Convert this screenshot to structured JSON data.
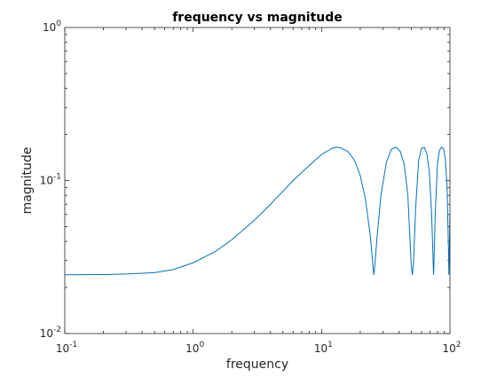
{
  "chart_data": {
    "type": "line",
    "title": "frequency vs magnitude",
    "xlabel": "frequency",
    "ylabel": "magnitude",
    "xscale": "log",
    "yscale": "log",
    "xlim": [
      0.1,
      100
    ],
    "ylim": [
      0.01,
      1
    ],
    "grid": false,
    "line_color": "#0072BD",
    "x_ticks": [
      {
        "value": 0.1,
        "base": "10",
        "exp": "-1"
      },
      {
        "value": 1,
        "base": "10",
        "exp": "0"
      },
      {
        "value": 10,
        "base": "10",
        "exp": "1"
      },
      {
        "value": 100,
        "base": "10",
        "exp": "2"
      }
    ],
    "y_ticks": [
      {
        "value": 0.01,
        "base": "10",
        "exp": "-2"
      },
      {
        "value": 0.1,
        "base": "10",
        "exp": "-1"
      },
      {
        "value": 1,
        "base": "10",
        "exp": "0"
      }
    ],
    "series": [
      {
        "x": [
          0.1,
          0.2,
          0.3,
          0.5,
          0.7,
          1.0,
          1.5,
          2.0,
          3.0,
          4.0,
          5.0,
          6.0,
          8.0,
          10.0,
          12.0,
          13.0,
          14.0,
          16.0,
          18.0,
          20.0,
          22.0,
          24.0,
          25.5,
          26.0,
          27.0,
          29.0,
          32.0,
          35.0,
          38.0,
          41.0,
          44.0,
          47.0,
          50.0,
          51.0,
          52.0,
          54.0,
          57.0,
          60.0,
          63.0,
          66.0,
          69.0,
          72.0,
          74.5,
          75.0,
          77.0,
          80.0,
          83.0,
          86.0,
          89.0,
          92.0,
          95.0,
          97.5,
          98.0,
          99.0,
          100.0
        ],
        "y": [
          0.0242,
          0.0243,
          0.0245,
          0.025,
          0.0262,
          0.029,
          0.0345,
          0.041,
          0.055,
          0.07,
          0.085,
          0.1,
          0.125,
          0.148,
          0.162,
          0.165,
          0.164,
          0.155,
          0.136,
          0.108,
          0.075,
          0.043,
          0.0242,
          0.028,
          0.042,
          0.08,
          0.132,
          0.16,
          0.165,
          0.155,
          0.128,
          0.08,
          0.0275,
          0.0242,
          0.029,
          0.065,
          0.135,
          0.162,
          0.165,
          0.15,
          0.115,
          0.06,
          0.0242,
          0.028,
          0.065,
          0.13,
          0.158,
          0.165,
          0.162,
          0.14,
          0.09,
          0.034,
          0.0242,
          0.035,
          0.06
        ]
      }
    ]
  }
}
